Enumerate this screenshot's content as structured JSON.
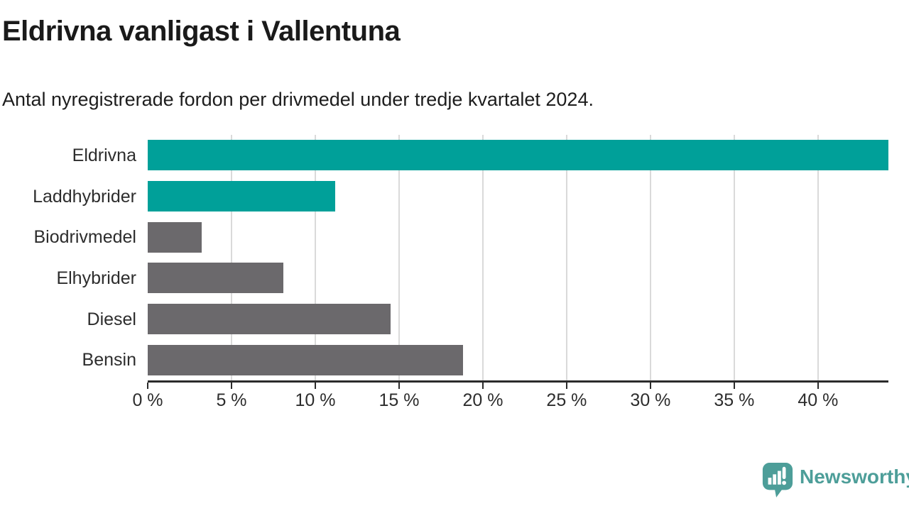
{
  "header": {
    "title": "Eldrivna vanligast i Vallentuna",
    "subtitle": "Antal nyregistrerade fordon per drivmedel under tredje kvartalet 2024."
  },
  "chart_data": {
    "type": "bar",
    "orientation": "horizontal",
    "title": "Eldrivna vanligast i Vallentuna",
    "subtitle": "Antal nyregistrerade fordon per drivmedel under tredje kvartalet 2024.",
    "categories": [
      "Eldrivna",
      "Laddhybrider",
      "Biodrivmedel",
      "Elhybrider",
      "Diesel",
      "Bensin"
    ],
    "values": [
      44.2,
      11.2,
      3.2,
      8.1,
      14.5,
      18.8
    ],
    "unit": "%",
    "xlim": [
      0,
      44.2
    ],
    "x_ticks": [
      0,
      5,
      10,
      15,
      20,
      25,
      30,
      35,
      40
    ],
    "x_tick_labels": [
      "0 %",
      "5 %",
      "10 %",
      "15 %",
      "20 %",
      "25 %",
      "30 %",
      "35 %",
      "40 %"
    ],
    "bar_colors": [
      "#00a099",
      "#00a099",
      "#6b696c",
      "#6b696c",
      "#6b696c",
      "#6b696c"
    ],
    "highlight_color": "#00a099",
    "base_color": "#6b696c",
    "gridline_color": "#dadada",
    "axis_color": "#2b2b2b",
    "grid": true,
    "legend": false,
    "ylabel": "",
    "xlabel": ""
  },
  "footer": {
    "brand": "Newsworthy",
    "logo_icon": "bar-chart-speech-bubble-icon",
    "brand_color": "#4d9e99"
  }
}
